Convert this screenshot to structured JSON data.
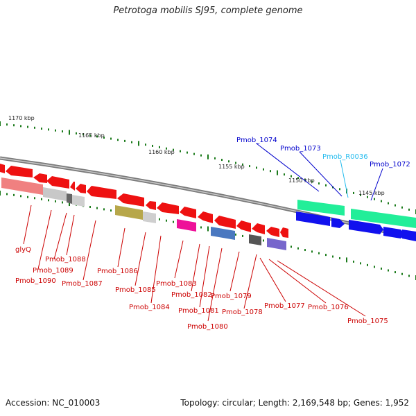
{
  "title": "Petrotoga mobilis SJ95, complete genome",
  "footer": {
    "accession": "Accession: NC_010003",
    "topology": "Topology: circular; Length: 2,169,548 bp; Genes: 1,952"
  },
  "scale_labels": [
    "1170 kbp",
    "1165 kbp",
    "1160 kbp",
    "1155 kbp",
    "1150 kbp",
    "1145 kbp"
  ],
  "upper_labels": [
    {
      "text": "Pmob_1074",
      "color": "#0000cc"
    },
    {
      "text": "Pmob_1073",
      "color": "#0000cc"
    },
    {
      "text": "Pmob_R0036",
      "color": "#22bbee"
    },
    {
      "text": "Pmob_1072",
      "color": "#0000cc"
    }
  ],
  "lower_labels": [
    "glyQ",
    "Pmob_1088",
    "Pmob_1089",
    "Pmob_1090",
    "Pmob_1087",
    "Pmob_1086",
    "Pmob_1085",
    "Pmob_1084",
    "Pmob_1083",
    "Pmob_1082",
    "Pmob_1081",
    "Pmob_1080",
    "Pmob_1079",
    "Pmob_1078",
    "Pmob_1077",
    "Pmob_1076",
    "Pmob_1075"
  ],
  "colors": {
    "reverse_gene": "#ee1111",
    "forward_gene": "#1111ee",
    "rna_gene": "#22ee99",
    "backbone": "#808080",
    "ticks": "#1a7a1a",
    "label_lower": "#cc0000"
  }
}
